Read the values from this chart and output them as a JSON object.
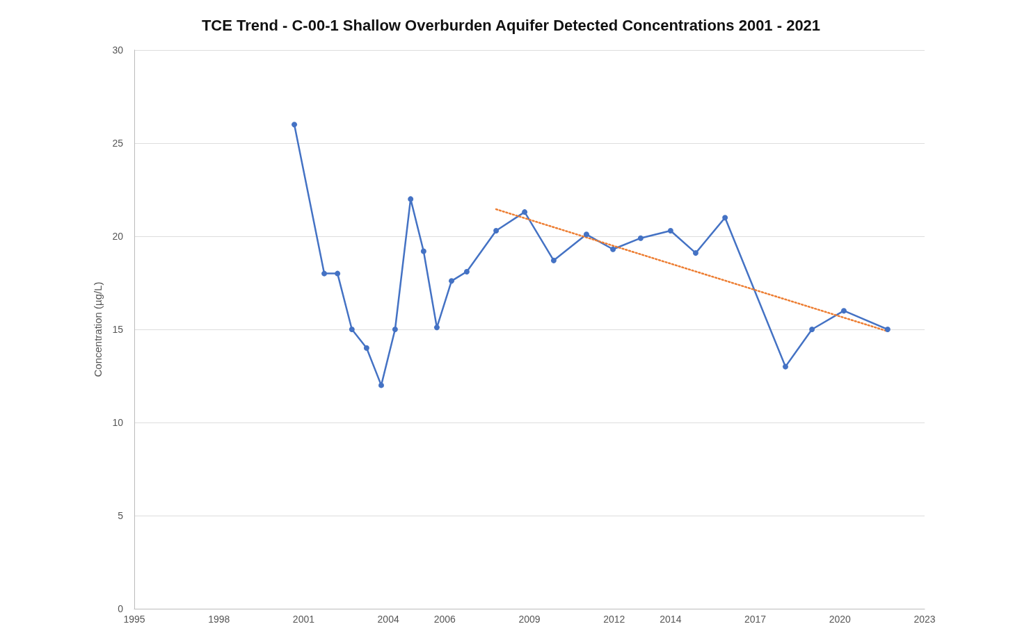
{
  "chart_data": {
    "type": "line",
    "title": "TCE Trend - C-00-1 Shallow Overburden Aquifer Detected Concentrations 2001 - 2021",
    "ylabel": "Concentration (µg/L)",
    "xlim": [
      1995,
      2023
    ],
    "xticks": [
      1995,
      1998,
      2001,
      2004,
      2006,
      2009,
      2012,
      2014,
      2017,
      2020,
      2023
    ],
    "ylim": [
      0,
      30
    ],
    "yticks": [
      0,
      5,
      10,
      15,
      20,
      25,
      30
    ],
    "grid": "y",
    "marker": "circle",
    "line_style": "solid",
    "series": [
      {
        "color": "#4472c4",
        "x": [
          2000.67,
          2001.73,
          2002.2,
          2002.71,
          2003.23,
          2003.75,
          2004.24,
          2004.79,
          2005.25,
          2005.72,
          2006.24,
          2006.78,
          2007.82,
          2008.83,
          2009.86,
          2011.02,
          2011.96,
          2012.94,
          2014.0,
          2014.89,
          2015.93,
          2018.07,
          2019.01,
          2020.14,
          2021.69
        ],
        "values": [
          26,
          18,
          18,
          15,
          14,
          12,
          15,
          22,
          19.2,
          15.1,
          17.6,
          18.1,
          20.3,
          21.3,
          18.7,
          20.1,
          19.3,
          19.9,
          20.3,
          19.1,
          21,
          13,
          15,
          16,
          15
        ]
      },
      {
        "color": "#ed7d31",
        "marker": "none",
        "line_style": "dotted",
        "x": [
          2007.82,
          2021.69
        ],
        "values": [
          21.45,
          14.9
        ]
      }
    ]
  }
}
